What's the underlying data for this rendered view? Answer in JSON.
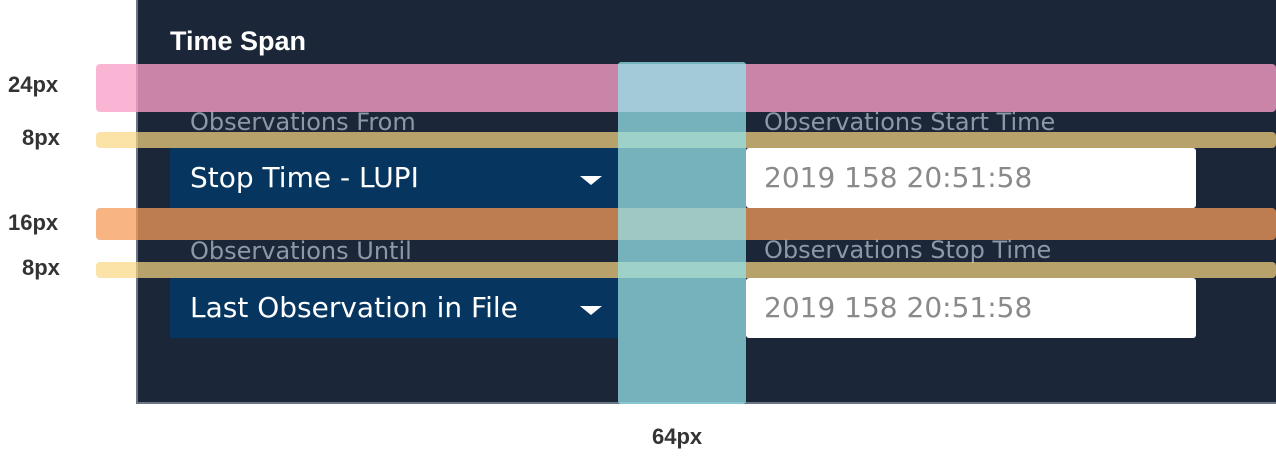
{
  "panel": {
    "title": "Time Span",
    "fields": [
      {
        "label": "Observations From",
        "select": "Stop Time - LUPI",
        "time_label": "Observations Start Time",
        "time": "2019 158 20:51:58"
      },
      {
        "label": "Observations Until",
        "select": "Last Observation in File",
        "time_label": "Observations Stop Time",
        "time": "2019 158 20:51:58"
      }
    ]
  },
  "annotations": {
    "spacing": [
      "24px",
      "8px",
      "16px",
      "8px",
      "64px"
    ]
  }
}
